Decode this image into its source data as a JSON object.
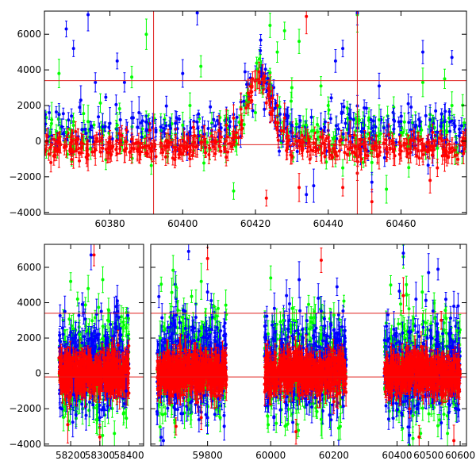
{
  "chart_data": [
    {
      "type": "scatter",
      "title": "",
      "xlabel": "",
      "ylabel": "",
      "xlim": [
        60362,
        60478
      ],
      "ylim": [
        -4100,
        7300
      ],
      "x_ticks": [
        60380,
        60400,
        60420,
        60440,
        60460
      ],
      "x_tick_labels": [
        "60380",
        "60400",
        "60420",
        "60440",
        "60460"
      ],
      "y_ticks": [
        -4000,
        -2000,
        0,
        2000,
        4000,
        6000
      ],
      "y_tick_labels": [
        "−4000",
        "−2000",
        "0",
        "2000",
        "4000",
        "6000"
      ],
      "hlines": [
        3400,
        -200
      ],
      "vlines": [
        60392,
        60448
      ],
      "grid": false,
      "series": [
        {
          "color": "#00ff00",
          "points": [
            [
              60364,
              1200
            ],
            [
              60366,
              3800
            ],
            [
              60368,
              500
            ],
            [
              60370,
              -300
            ],
            [
              60374,
              1100
            ],
            [
              60378,
              700
            ],
            [
              60382,
              900
            ],
            [
              60386,
              3600
            ],
            [
              60390,
              6000
            ],
            [
              60394,
              600
            ],
            [
              60398,
              400
            ],
            [
              60400,
              900
            ],
            [
              60402,
              2000
            ],
            [
              60405,
              4200
            ],
            [
              60408,
              1000
            ],
            [
              60412,
              1300
            ],
            [
              60414,
              -2800
            ],
            [
              60416,
              1900
            ],
            [
              60418,
              2200
            ],
            [
              60420,
              1600
            ],
            [
              60422,
              3000
            ],
            [
              60424,
              6500
            ],
            [
              60426,
              5000
            ],
            [
              60428,
              6200
            ],
            [
              60430,
              3000
            ],
            [
              60432,
              5600
            ],
            [
              60434,
              900
            ],
            [
              60436,
              600
            ],
            [
              60438,
              3100
            ],
            [
              60440,
              2000
            ],
            [
              60442,
              -600
            ],
            [
              60444,
              -1500
            ],
            [
              60446,
              1200
            ],
            [
              60448,
              7100
            ],
            [
              60450,
              900
            ],
            [
              60452,
              -1200
            ],
            [
              60454,
              1200
            ],
            [
              60456,
              -2700
            ],
            [
              60458,
              1900
            ],
            [
              60460,
              500
            ],
            [
              60462,
              -300
            ],
            [
              60464,
              800
            ],
            [
              60466,
              3300
            ],
            [
              60468,
              1500
            ],
            [
              60470,
              -400
            ],
            [
              60472,
              3500
            ],
            [
              60474,
              2000
            ]
          ]
        },
        {
          "color": "#0000ff",
          "points": [
            [
              60364,
              300
            ],
            [
              60366,
              1500
            ],
            [
              60368,
              6300
            ],
            [
              60370,
              5200
            ],
            [
              60372,
              2300
            ],
            [
              60374,
              7100
            ],
            [
              60376,
              3300
            ],
            [
              60378,
              800
            ],
            [
              60380,
              1000
            ],
            [
              60382,
              4500
            ],
            [
              60384,
              3300
            ],
            [
              60386,
              1300
            ],
            [
              60388,
              1600
            ],
            [
              60390,
              600
            ],
            [
              60394,
              800
            ],
            [
              60398,
              1000
            ],
            [
              60400,
              3800
            ],
            [
              60402,
              500
            ],
            [
              60404,
              7200
            ],
            [
              60406,
              400
            ],
            [
              60408,
              600
            ],
            [
              60410,
              1000
            ],
            [
              60412,
              1200
            ],
            [
              60414,
              1500
            ],
            [
              60416,
              2200
            ],
            [
              60418,
              3200
            ],
            [
              60420,
              3400
            ],
            [
              60422,
              3800
            ],
            [
              60424,
              2800
            ],
            [
              60426,
              2000
            ],
            [
              60428,
              1500
            ],
            [
              60430,
              900
            ],
            [
              60432,
              800
            ],
            [
              60434,
              -3000
            ],
            [
              60436,
              -2500
            ],
            [
              60438,
              700
            ],
            [
              60440,
              600
            ],
            [
              60442,
              4500
            ],
            [
              60444,
              5200
            ],
            [
              60446,
              1300
            ],
            [
              60448,
              7200
            ],
            [
              60450,
              500
            ],
            [
              60452,
              -2300
            ],
            [
              60454,
              3100
            ],
            [
              60456,
              300
            ],
            [
              60458,
              1200
            ],
            [
              60460,
              1100
            ],
            [
              60462,
              2100
            ],
            [
              60464,
              800
            ],
            [
              60466,
              5000
            ],
            [
              60468,
              1200
            ],
            [
              60470,
              500
            ],
            [
              60472,
              1100
            ],
            [
              60474,
              4700
            ],
            [
              60476,
              300
            ]
          ]
        },
        {
          "color": "#ff0000",
          "points": [
            [
              60364,
              -200
            ],
            [
              60366,
              -500
            ],
            [
              60368,
              -300
            ],
            [
              60370,
              -600
            ],
            [
              60372,
              -400
            ],
            [
              60374,
              -800
            ],
            [
              60376,
              -500
            ],
            [
              60378,
              -400
            ],
            [
              60380,
              -300
            ],
            [
              60382,
              -700
            ],
            [
              60384,
              -500
            ],
            [
              60386,
              -400
            ],
            [
              60388,
              -600
            ],
            [
              60390,
              -300
            ],
            [
              60392,
              -200
            ],
            [
              60394,
              -100
            ],
            [
              60396,
              -300
            ],
            [
              60398,
              -500
            ],
            [
              60400,
              -700
            ],
            [
              60402,
              -1000
            ],
            [
              60404,
              -300
            ],
            [
              60406,
              100
            ],
            [
              60408,
              300
            ],
            [
              60410,
              600
            ],
            [
              60412,
              900
            ],
            [
              60414,
              1300
            ],
            [
              60416,
              1800
            ],
            [
              60418,
              2700
            ],
            [
              60420,
              3400
            ],
            [
              60421,
              3900
            ],
            [
              60422,
              3500
            ],
            [
              60423,
              -3200
            ],
            [
              60424,
              2800
            ],
            [
              60426,
              2000
            ],
            [
              60428,
              1300
            ],
            [
              60430,
              -900
            ],
            [
              60432,
              -2600
            ],
            [
              60434,
              7000
            ],
            [
              60436,
              -100
            ],
            [
              60438,
              -300
            ],
            [
              60440,
              200
            ],
            [
              60442,
              -600
            ],
            [
              60444,
              -2600
            ],
            [
              60446,
              300
            ],
            [
              60448,
              -1800
            ],
            [
              60450,
              -300
            ],
            [
              60452,
              -3400
            ],
            [
              60454,
              -800
            ],
            [
              60456,
              -400
            ],
            [
              60458,
              -600
            ],
            [
              60460,
              -300
            ],
            [
              60462,
              -700
            ],
            [
              60464,
              -400
            ],
            [
              60466,
              -500
            ],
            [
              60468,
              -2200
            ],
            [
              60470,
              -1500
            ],
            [
              60472,
              -800
            ],
            [
              60474,
              -600
            ]
          ]
        }
      ]
    },
    {
      "type": "scatter",
      "title": "",
      "xlabel": "",
      "ylabel": "",
      "ylim": [
        -4100,
        7300
      ],
      "x_ticks": [
        58200,
        58300,
        58400,
        59800,
        60000,
        60200,
        60400,
        60500,
        60600
      ],
      "x_tick_labels": [
        "58200",
        "58300",
        "58400",
        "59800",
        "60000",
        "60200",
        "60400",
        "60500",
        "60600"
      ],
      "y_ticks": [
        -4000,
        -2000,
        0,
        2000,
        4000,
        6000
      ],
      "y_tick_labels": [
        "−4000",
        "−2000",
        "0",
        "2000",
        "4000",
        "6000"
      ],
      "hlines": [
        3400,
        -200
      ],
      "broken_axis_segments": [
        [
          58110,
          58450
        ],
        [
          59620,
          60620
        ]
      ],
      "grid": false,
      "seasons": [
        [
          58160,
          58400
        ],
        [
          59640,
          59860
        ],
        [
          59980,
          60240
        ],
        [
          60360,
          60600
        ]
      ],
      "series": [
        {
          "color": "#00ff00",
          "points": [
            [
              58200,
              5200
            ],
            [
              58230,
              2200
            ],
            [
              58260,
              4800
            ],
            [
              58290,
              -1800
            ],
            [
              58310,
              5300
            ],
            [
              58330,
              3600
            ],
            [
              58350,
              -3400
            ],
            [
              58380,
              2900
            ],
            [
              59650,
              2000
            ],
            [
              59700,
              4900
            ],
            [
              59740,
              -1500
            ],
            [
              59780,
              5200
            ],
            [
              59820,
              3800
            ],
            [
              59840,
              -2500
            ],
            [
              60000,
              5400
            ],
            [
              60040,
              3000
            ],
            [
              60080,
              -1400
            ],
            [
              60120,
              3900
            ],
            [
              60160,
              -2600
            ],
            [
              60200,
              3300
            ],
            [
              60380,
              5000
            ],
            [
              60420,
              6600
            ],
            [
              60450,
              -2400
            ],
            [
              60480,
              4600
            ],
            [
              60520,
              3100
            ],
            [
              60560,
              -3400
            ],
            [
              60590,
              2400
            ]
          ]
        },
        {
          "color": "#0000ff",
          "points": [
            [
              58180,
              3500
            ],
            [
              58210,
              -1200
            ],
            [
              58240,
              3900
            ],
            [
              58270,
              6700
            ],
            [
              58300,
              -2500
            ],
            [
              58320,
              1700
            ],
            [
              58360,
              4100
            ],
            [
              58390,
              -1000
            ],
            [
              59660,
              -3800
            ],
            [
              59700,
              3300
            ],
            [
              59740,
              6900
            ],
            [
              59780,
              -2200
            ],
            [
              59800,
              4600
            ],
            [
              59840,
              1500
            ],
            [
              60010,
              -2500
            ],
            [
              60050,
              4400
            ],
            [
              60090,
              5300
            ],
            [
              60130,
              -1900
            ],
            [
              60170,
              3100
            ],
            [
              60210,
              4900
            ],
            [
              60390,
              2500
            ],
            [
              60420,
              6800
            ],
            [
              60440,
              -3500
            ],
            [
              60460,
              4200
            ],
            [
              60500,
              5700
            ],
            [
              60540,
              -2800
            ],
            [
              60580,
              3800
            ]
          ]
        },
        {
          "color": "#ff0000",
          "points": [
            [
              58190,
              -2900
            ],
            [
              58220,
              300
            ],
            [
              58250,
              -900
            ],
            [
              58280,
              6700
            ],
            [
              58300,
              -3600
            ],
            [
              58330,
              200
            ],
            [
              58360,
              -1100
            ],
            [
              58390,
              300
            ],
            [
              59660,
              -600
            ],
            [
              59700,
              -3000
            ],
            [
              59740,
              300
            ],
            [
              59780,
              -2500
            ],
            [
              59800,
              6500
            ],
            [
              59840,
              -400
            ],
            [
              60000,
              -1200
            ],
            [
              60040,
              500
            ],
            [
              60080,
              -3300
            ],
            [
              60120,
              -600
            ],
            [
              60160,
              6400
            ],
            [
              60200,
              -1600
            ],
            [
              60380,
              -400
            ],
            [
              60420,
              4400
            ],
            [
              60440,
              -2000
            ],
            [
              60470,
              -3600
            ],
            [
              60500,
              -700
            ],
            [
              60540,
              3000
            ],
            [
              60580,
              -3800
            ]
          ]
        }
      ]
    }
  ]
}
